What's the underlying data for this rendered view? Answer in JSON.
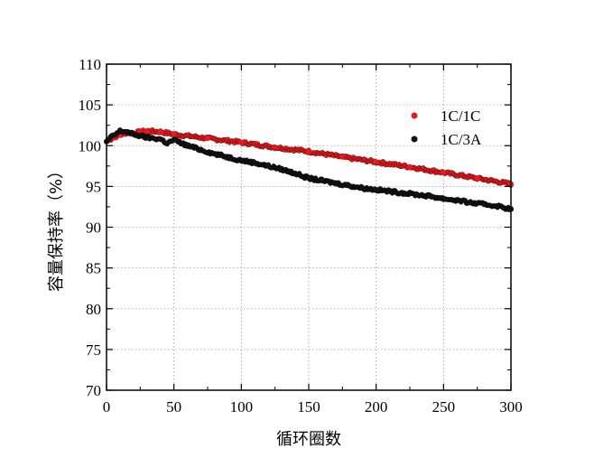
{
  "chart_data": {
    "type": "scatter",
    "xlabel": "循环圈数",
    "ylabel": "容量保持率（%）",
    "xlim": [
      0,
      300
    ],
    "ylim": [
      70,
      110
    ],
    "x_ticks": [
      "0",
      "50",
      "100",
      "150",
      "200",
      "250",
      "300"
    ],
    "y_ticks": [
      "70",
      "75",
      "80",
      "85",
      "90",
      "95",
      "100",
      "105",
      "110"
    ],
    "grid": "dotted",
    "legend_position": "top-right",
    "series": [
      {
        "name": "1C/1C",
        "color": "#e8191c",
        "x": [
          0,
          5,
          10,
          15,
          20,
          25,
          30,
          40,
          50,
          75,
          100,
          125,
          150,
          175,
          200,
          225,
          250,
          275,
          300
        ],
        "y": [
          100.5,
          101.0,
          101.3,
          101.6,
          101.5,
          101.7,
          101.8,
          101.7,
          101.4,
          100.9,
          100.4,
          99.8,
          99.3,
          98.6,
          98.0,
          97.4,
          96.7,
          96.0,
          95.3
        ]
      },
      {
        "name": "1C/3A",
        "color": "#111111",
        "x": [
          0,
          3,
          6,
          10,
          15,
          20,
          25,
          30,
          40,
          45,
          50,
          60,
          70,
          80,
          90,
          100,
          110,
          120,
          130,
          140,
          150,
          160,
          170,
          180,
          190,
          200,
          210,
          220,
          230,
          240,
          250,
          260,
          270,
          280,
          290,
          300
        ],
        "y": [
          100.5,
          101.0,
          101.3,
          101.8,
          101.7,
          101.4,
          101.2,
          101.0,
          100.8,
          100.3,
          100.7,
          100.0,
          99.5,
          99.0,
          98.6,
          98.2,
          97.9,
          97.5,
          97.1,
          96.6,
          96.0,
          95.7,
          95.4,
          95.1,
          94.8,
          94.6,
          94.4,
          94.2,
          94.0,
          93.8,
          93.5,
          93.3,
          93.0,
          92.8,
          92.6,
          92.2
        ]
      }
    ]
  }
}
